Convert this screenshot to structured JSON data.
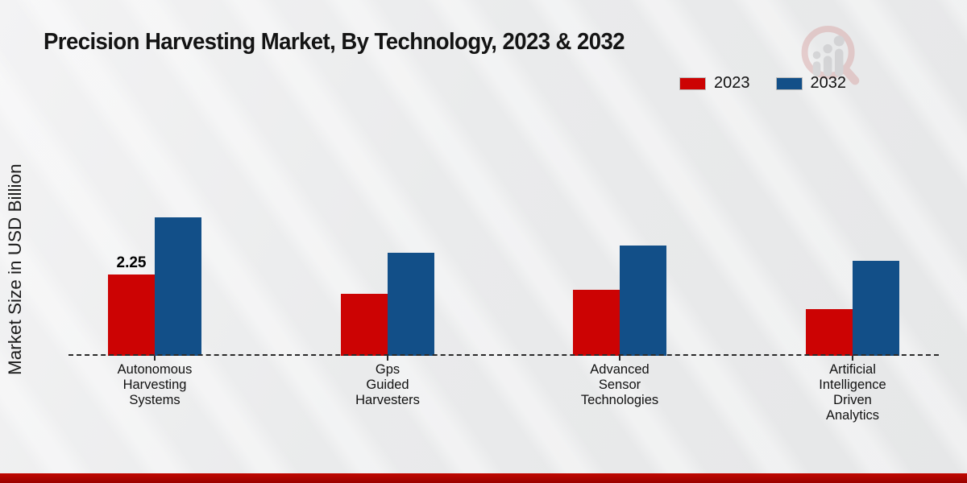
{
  "page": {
    "title": "Precision Harvesting Market, By Technology, 2023 & 2032"
  },
  "ylabel": "Market Size in USD Billion",
  "legend": {
    "items": [
      {
        "label": "2023",
        "color": "#cc0303"
      },
      {
        "label": "2032",
        "color": "#124f88"
      }
    ]
  },
  "logo": {
    "name": "market-research-future-watermark"
  },
  "chart_data": {
    "type": "bar",
    "title": "Precision Harvesting Market, By Technology, 2023 & 2032",
    "xlabel": "",
    "ylabel": "Market Size in USD Billion",
    "unit": "USD Billion",
    "categories": [
      "Autonomous Harvesting Systems",
      "Gps Guided Harvesters",
      "Advanced Sensor Technologies",
      "Artificial Intelligence Driven Analytics"
    ],
    "category_label_lines": [
      [
        "Autonomous",
        "Harvesting",
        "Systems"
      ],
      [
        "Gps",
        "Guided",
        "Harvesters"
      ],
      [
        "Advanced",
        "Sensor",
        "Technologies"
      ],
      [
        "Artificial",
        "Intelligence",
        "Driven",
        "Analytics"
      ]
    ],
    "series": [
      {
        "name": "2023",
        "color": "#cc0303",
        "values": [
          2.25,
          1.7,
          1.83,
          1.28
        ]
      },
      {
        "name": "2032",
        "color": "#124f88",
        "values": [
          3.82,
          2.85,
          3.04,
          2.63
        ]
      }
    ],
    "data_labels": [
      {
        "series_index": 0,
        "category_index": 0,
        "text": "2.25"
      }
    ],
    "ylim": [
      0,
      4.5
    ],
    "grid": false,
    "legend_position": "top-right",
    "baseline_style": "dashed"
  }
}
